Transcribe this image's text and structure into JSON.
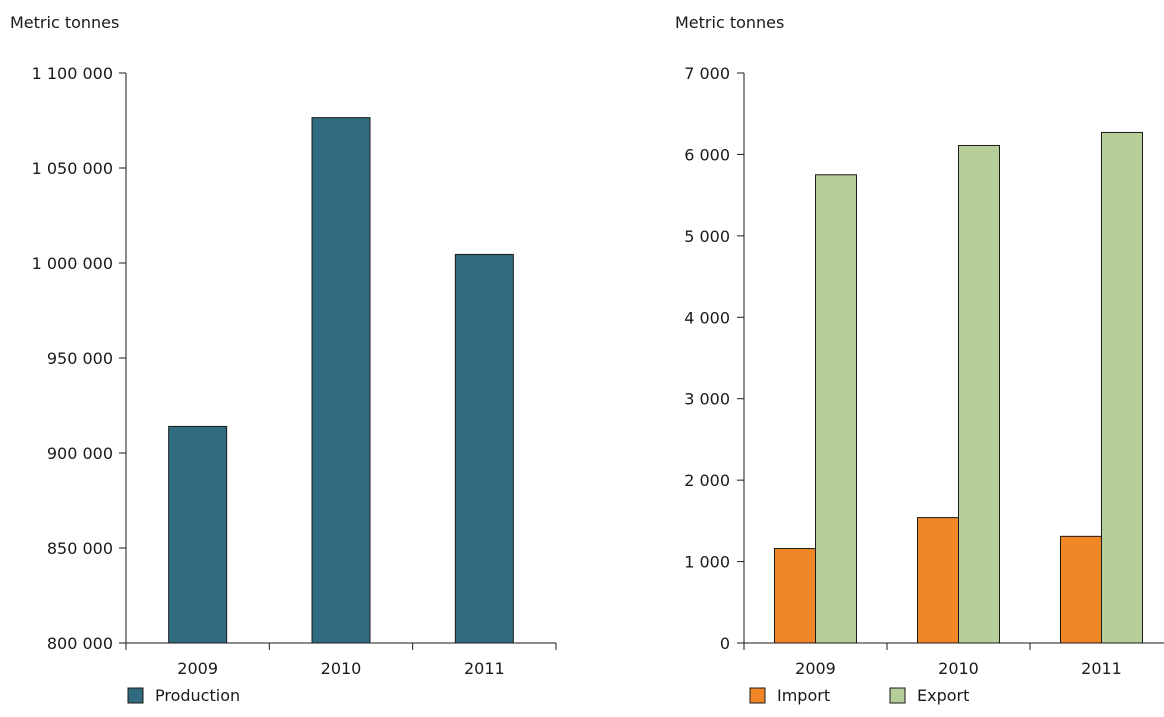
{
  "chart_data": [
    {
      "type": "bar",
      "ylabel": "Metric tonnes",
      "categories": [
        "2009",
        "2010",
        "2011"
      ],
      "ylim": [
        800000,
        1100000
      ],
      "yticks": [
        800000,
        850000,
        900000,
        950000,
        1000000,
        1050000,
        1100000
      ],
      "ytick_labels": [
        "800 000",
        "850 000",
        "900 000",
        "950 000",
        "1 000 000",
        "1 050 000",
        "1 100 000"
      ],
      "series": [
        {
          "name": "Production",
          "color": "#306b80",
          "values": [
            914000,
            1076500,
            1004500
          ]
        }
      ],
      "legend": "bottom-left"
    },
    {
      "type": "bar",
      "ylabel": "Metric tonnes",
      "categories": [
        "2009",
        "2010",
        "2011"
      ],
      "ylim": [
        0,
        7000
      ],
      "yticks": [
        0,
        1000,
        2000,
        3000,
        4000,
        5000,
        6000,
        7000
      ],
      "ytick_labels": [
        "0",
        "1 000",
        "2 000",
        "3 000",
        "4 000",
        "5 000",
        "6 000",
        "7 000"
      ],
      "series": [
        {
          "name": "Import",
          "color": "#f18626",
          "values": [
            1160,
            1540,
            1310
          ]
        },
        {
          "name": "Export",
          "color": "#b6cf9a",
          "values": [
            5750,
            6110,
            6270
          ]
        }
      ],
      "legend": "bottom-left"
    }
  ]
}
